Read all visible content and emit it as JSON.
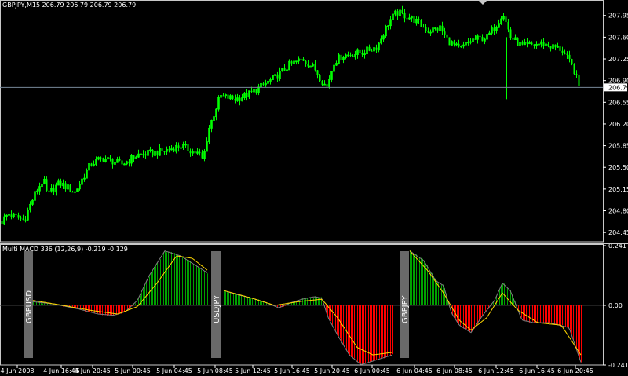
{
  "window": {
    "symbol_title": "GBPJPY,M15",
    "ohlc": "206.79 206.79 206.79 206.79"
  },
  "indicator": {
    "title": "Multi MACD 336 (12,26,9)",
    "values": "-0.219 -0.129",
    "pair_labels": [
      "GBPUSD",
      "USDJPY",
      "GBPJPY"
    ]
  },
  "colors": {
    "background": "#000000",
    "candles": "#00ff00",
    "bid_line": "#778899",
    "histogram_positive": "#00a000",
    "histogram_negative": "#ff0000",
    "signal_line": "#ffd700",
    "macd_line": "#808080",
    "label_bar": "#696969"
  },
  "chart_data": [
    {
      "type": "candlestick",
      "title": "GBPJPY,M15",
      "current_price": "206.79",
      "ylim": [
        204.3,
        208.2
      ],
      "y_ticks": [
        "207.95",
        "207.60",
        "207.25",
        "206.90",
        "206.55",
        "206.20",
        "205.85",
        "205.50",
        "205.15",
        "204.80",
        "204.45"
      ],
      "anchors": [
        [
          0,
          204.6
        ],
        [
          10,
          204.75
        ],
        [
          30,
          204.65
        ],
        [
          45,
          205.1
        ],
        [
          55,
          205.3
        ],
        [
          60,
          205.05
        ],
        [
          75,
          205.25
        ],
        [
          95,
          205.1
        ],
        [
          115,
          205.55
        ],
        [
          130,
          205.65
        ],
        [
          155,
          205.55
        ],
        [
          175,
          205.7
        ],
        [
          205,
          205.75
        ],
        [
          230,
          205.85
        ],
        [
          255,
          205.7
        ],
        [
          258,
          205.6
        ],
        [
          265,
          206.1
        ],
        [
          280,
          206.65
        ],
        [
          300,
          206.6
        ],
        [
          320,
          206.7
        ],
        [
          350,
          206.95
        ],
        [
          368,
          207.15
        ],
        [
          385,
          207.25
        ],
        [
          400,
          207.1
        ],
        [
          412,
          206.85
        ],
        [
          416,
          206.8
        ],
        [
          425,
          207.2
        ],
        [
          435,
          207.3
        ],
        [
          460,
          207.35
        ],
        [
          480,
          207.45
        ],
        [
          495,
          207.85
        ],
        [
          505,
          208.0
        ],
        [
          525,
          207.9
        ],
        [
          545,
          207.7
        ],
        [
          560,
          207.75
        ],
        [
          570,
          207.55
        ],
        [
          585,
          207.4
        ],
        [
          600,
          207.55
        ],
        [
          620,
          207.6
        ],
        [
          632,
          207.8
        ],
        [
          640,
          208.0
        ],
        [
          650,
          207.6
        ],
        [
          665,
          207.45
        ],
        [
          690,
          207.5
        ],
        [
          715,
          207.4
        ],
        [
          730,
          207.1
        ],
        [
          737,
          206.8
        ]
      ]
    },
    {
      "type": "histogram",
      "title": "Multi MACD 336 (12,26,9)",
      "ylim": [
        -0.241,
        0.241
      ],
      "y_ticks": [
        "0.241",
        "0.00",
        "-0.241"
      ],
      "x_tick_labels": [
        "4 Jun 2008",
        "4 Jun 16:45",
        "4 Jun 20:45",
        "5 Jun 00:45",
        "5 Jun 04:45",
        "5 Jun 08:45",
        "5 Jun 12:45",
        "5 Jun 16:45",
        "5 Jun 20:45",
        "6 Jun 00:45",
        "6 Jun 04:45",
        "6 Jun 08:45",
        "6 Jun 12:45",
        "6 Jun 16:45",
        "6 Jun 20:45"
      ],
      "series": [
        {
          "name": "GBPUSD",
          "anchors": [
            [
              42,
              0.015
            ],
            [
              70,
              0.005
            ],
            [
              100,
              -0.015
            ],
            [
              125,
              -0.035
            ],
            [
              145,
              -0.04
            ],
            [
              160,
              -0.025
            ],
            [
              175,
              0.02
            ],
            [
              190,
              0.12
            ],
            [
              210,
              0.22
            ],
            [
              230,
              0.2
            ],
            [
              250,
              0.16
            ],
            [
              265,
              0.13
            ]
          ],
          "signal": [
            [
              42,
              0.02
            ],
            [
              80,
              0.0
            ],
            [
              115,
              -0.02
            ],
            [
              150,
              -0.035
            ],
            [
              175,
              -0.005
            ],
            [
              200,
              0.09
            ],
            [
              225,
              0.2
            ],
            [
              245,
              0.19
            ],
            [
              265,
              0.14
            ]
          ]
        },
        {
          "name": "USDJPY",
          "anchors": [
            [
              285,
              0.06
            ],
            [
              300,
              0.045
            ],
            [
              320,
              0.03
            ],
            [
              340,
              0.01
            ],
            [
              355,
              -0.01
            ],
            [
              370,
              0.01
            ],
            [
              385,
              0.025
            ],
            [
              400,
              0.035
            ],
            [
              410,
              0.03
            ],
            [
              418,
              -0.05
            ],
            [
              430,
              -0.12
            ],
            [
              445,
              -0.2
            ],
            [
              460,
              -0.24
            ],
            [
              480,
              -0.22
            ],
            [
              500,
              -0.2
            ]
          ],
          "signal": [
            [
              285,
              0.06
            ],
            [
              320,
              0.03
            ],
            [
              350,
              0.0
            ],
            [
              380,
              0.015
            ],
            [
              410,
              0.025
            ],
            [
              430,
              -0.05
            ],
            [
              455,
              -0.17
            ],
            [
              475,
              -0.2
            ],
            [
              500,
              -0.19
            ]
          ]
        },
        {
          "name": "GBPJPY",
          "anchors": [
            [
              522,
              0.22
            ],
            [
              540,
              0.18
            ],
            [
              555,
              0.1
            ],
            [
              565,
              0.08
            ],
            [
              575,
              -0.03
            ],
            [
              585,
              -0.08
            ],
            [
              600,
              -0.11
            ],
            [
              615,
              -0.04
            ],
            [
              630,
              0.02
            ],
            [
              640,
              0.09
            ],
            [
              650,
              0.06
            ],
            [
              665,
              -0.06
            ],
            [
              680,
              -0.07
            ],
            [
              700,
              -0.07
            ],
            [
              725,
              -0.09
            ],
            [
              740,
              -0.23
            ]
          ],
          "signal": [
            [
              522,
              0.22
            ],
            [
              545,
              0.14
            ],
            [
              565,
              0.05
            ],
            [
              585,
              -0.06
            ],
            [
              600,
              -0.1
            ],
            [
              620,
              -0.05
            ],
            [
              640,
              0.05
            ],
            [
              660,
              -0.02
            ],
            [
              685,
              -0.07
            ],
            [
              715,
              -0.08
            ],
            [
              740,
              -0.2
            ]
          ]
        }
      ]
    }
  ]
}
